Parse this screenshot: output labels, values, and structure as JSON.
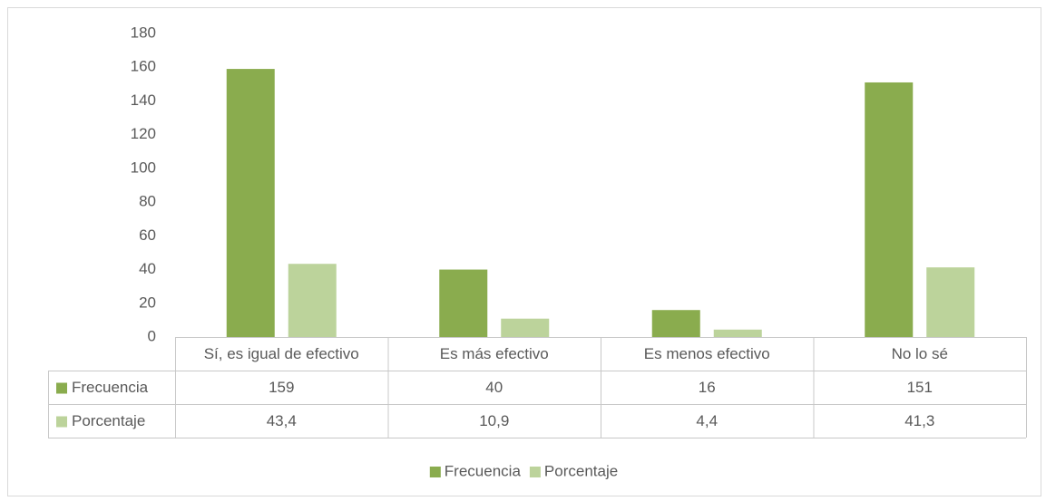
{
  "chart_data": {
    "type": "bar",
    "categories": [
      "Sí, es igual de efectivo",
      "Es más efectivo",
      "Es menos efectivo",
      "No lo sé"
    ],
    "series": [
      {
        "name": "Frecuencia",
        "color": "#8aac4e",
        "values": [
          159,
          40,
          16,
          151
        ]
      },
      {
        "name": "Porcentaje",
        "color": "#bcd39b",
        "values": [
          43.4,
          10.9,
          4.4,
          41.3
        ],
        "value_labels": [
          "43,4",
          "10,9",
          "4,4",
          "41,3"
        ]
      }
    ],
    "ylim": [
      0,
      180
    ],
    "yticks": [
      0,
      20,
      40,
      60,
      80,
      100,
      120,
      140,
      160,
      180
    ],
    "grid": false,
    "legend": "bottom",
    "data_table": true
  }
}
